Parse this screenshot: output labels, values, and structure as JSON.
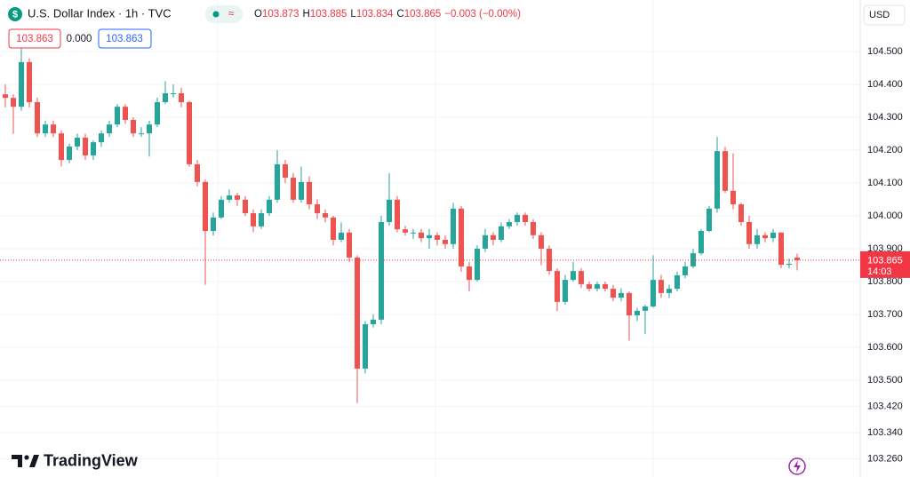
{
  "header": {
    "title": "U.S. Dollar Index · 1h · TVC",
    "status_icon": "≈",
    "ohlc": [
      {
        "label": "O",
        "value": "103.873"
      },
      {
        "label": "H",
        "value": "103.885"
      },
      {
        "label": "L",
        "value": "103.834"
      },
      {
        "label": "C",
        "value": "103.865"
      }
    ],
    "change": "−0.003 (−0.00%)",
    "badges": [
      "103.863",
      "0.000",
      "103.863"
    ]
  },
  "currency": "USD",
  "logo": "TradingView",
  "chart_data": {
    "type": "candlestick",
    "up_color": "#26a69a",
    "down_color": "#ef5350",
    "ylim": [
      103.205,
      104.657
    ],
    "yticks": [
      {
        "value": 104.5,
        "label": "104.500"
      },
      {
        "value": 104.4,
        "label": "104.400"
      },
      {
        "value": 104.3,
        "label": "104.300"
      },
      {
        "value": 104.2,
        "label": "104.200"
      },
      {
        "value": 104.1,
        "label": "104.100"
      },
      {
        "value": 104.0,
        "label": "104.000"
      },
      {
        "value": 103.9,
        "label": "103.900"
      },
      {
        "value": 103.8,
        "label": "103.800"
      },
      {
        "value": 103.7,
        "label": "103.700"
      },
      {
        "value": 103.6,
        "label": "103.600"
      },
      {
        "value": 103.5,
        "label": "103.500"
      },
      {
        "value": 103.42,
        "label": "103.420"
      },
      {
        "value": 103.34,
        "label": "103.340"
      },
      {
        "value": 103.26,
        "label": "103.260"
      }
    ],
    "grid": true,
    "last_price": {
      "value": 103.865,
      "label": "103.865"
    },
    "countdown": "14:03",
    "candles": [
      [
        104.37,
        104.4,
        104.33,
        104.359
      ],
      [
        104.359,
        104.37,
        104.25,
        104.332
      ],
      [
        104.332,
        104.535,
        104.32,
        104.468
      ],
      [
        104.468,
        104.48,
        104.33,
        104.346
      ],
      [
        104.346,
        104.36,
        104.24,
        104.251
      ],
      [
        104.251,
        104.29,
        104.24,
        104.278
      ],
      [
        104.278,
        104.29,
        104.24,
        104.251
      ],
      [
        104.251,
        104.26,
        104.15,
        104.17
      ],
      [
        104.17,
        104.22,
        104.16,
        104.211
      ],
      [
        104.211,
        104.25,
        104.2,
        104.238
      ],
      [
        104.238,
        104.25,
        104.17,
        104.184
      ],
      [
        104.184,
        104.23,
        104.17,
        104.224
      ],
      [
        104.224,
        104.26,
        104.21,
        104.251
      ],
      [
        104.251,
        104.29,
        104.24,
        104.278
      ],
      [
        104.278,
        104.34,
        104.27,
        104.332
      ],
      [
        104.332,
        104.34,
        104.28,
        104.292
      ],
      [
        104.292,
        104.3,
        104.24,
        104.251
      ],
      [
        104.251,
        104.27,
        104.24,
        104.251
      ],
      [
        104.251,
        104.29,
        104.18,
        104.278
      ],
      [
        104.278,
        104.36,
        104.27,
        104.346
      ],
      [
        104.346,
        104.41,
        104.34,
        104.373
      ],
      [
        104.373,
        104.4,
        104.36,
        104.373
      ],
      [
        104.373,
        104.39,
        104.33,
        104.346
      ],
      [
        104.346,
        104.35,
        104.15,
        104.157
      ],
      [
        104.157,
        104.17,
        104.09,
        104.103
      ],
      [
        104.103,
        104.11,
        103.79,
        103.954
      ],
      [
        103.954,
        104.01,
        103.94,
        103.995
      ],
      [
        103.995,
        104.06,
        103.99,
        104.049
      ],
      [
        104.049,
        104.08,
        104.04,
        104.062
      ],
      [
        104.062,
        104.07,
        104.03,
        104.049
      ],
      [
        104.049,
        104.06,
        104.0,
        104.008
      ],
      [
        104.008,
        104.02,
        103.95,
        103.968
      ],
      [
        103.968,
        104.02,
        103.96,
        104.008
      ],
      [
        104.008,
        104.06,
        104.0,
        104.049
      ],
      [
        104.049,
        104.2,
        104.04,
        104.157
      ],
      [
        104.157,
        104.17,
        104.1,
        104.116
      ],
      [
        104.116,
        104.13,
        104.04,
        104.049
      ],
      [
        104.049,
        104.15,
        104.04,
        104.103
      ],
      [
        104.103,
        104.12,
        104.02,
        104.035
      ],
      [
        104.035,
        104.05,
        103.99,
        104.008
      ],
      [
        104.008,
        104.02,
        103.98,
        103.995
      ],
      [
        103.995,
        104.0,
        103.91,
        103.927
      ],
      [
        103.927,
        103.98,
        103.92,
        103.949
      ],
      [
        103.949,
        103.96,
        103.86,
        103.873
      ],
      [
        103.873,
        103.88,
        103.43,
        103.535
      ],
      [
        103.535,
        103.68,
        103.52,
        103.67
      ],
      [
        103.67,
        103.7,
        103.66,
        103.684
      ],
      [
        103.684,
        104.0,
        103.67,
        103.981
      ],
      [
        103.981,
        104.13,
        103.97,
        104.049
      ],
      [
        104.049,
        104.06,
        103.95,
        103.959
      ],
      [
        103.959,
        103.97,
        103.94,
        103.949
      ],
      [
        103.949,
        103.96,
        103.93,
        103.949
      ],
      [
        103.949,
        103.96,
        103.92,
        103.932
      ],
      [
        103.932,
        103.96,
        103.9,
        103.941
      ],
      [
        103.941,
        103.95,
        103.91,
        103.927
      ],
      [
        103.927,
        103.94,
        103.9,
        103.914
      ],
      [
        103.914,
        104.04,
        103.9,
        104.022
      ],
      [
        104.022,
        104.03,
        103.83,
        103.846
      ],
      [
        103.846,
        103.86,
        103.77,
        103.805
      ],
      [
        103.805,
        103.91,
        103.8,
        103.9
      ],
      [
        103.9,
        103.96,
        103.89,
        103.941
      ],
      [
        103.941,
        103.95,
        103.91,
        103.927
      ],
      [
        103.927,
        103.98,
        103.92,
        103.968
      ],
      [
        103.968,
        103.99,
        103.96,
        103.981
      ],
      [
        103.981,
        104.01,
        103.97,
        104.003
      ],
      [
        104.003,
        104.01,
        103.97,
        103.981
      ],
      [
        103.981,
        103.99,
        103.93,
        103.941
      ],
      [
        103.941,
        103.95,
        103.85,
        103.9
      ],
      [
        103.9,
        103.91,
        103.82,
        103.832
      ],
      [
        103.832,
        103.84,
        103.71,
        103.738
      ],
      [
        103.738,
        103.82,
        103.73,
        103.805
      ],
      [
        103.805,
        103.86,
        103.8,
        103.832
      ],
      [
        103.832,
        103.84,
        103.78,
        103.792
      ],
      [
        103.792,
        103.8,
        103.77,
        103.778
      ],
      [
        103.778,
        103.8,
        103.77,
        103.792
      ],
      [
        103.792,
        103.8,
        103.77,
        103.778
      ],
      [
        103.778,
        103.79,
        103.74,
        103.751
      ],
      [
        103.751,
        103.78,
        103.74,
        103.765
      ],
      [
        103.765,
        103.77,
        103.62,
        103.697
      ],
      [
        103.697,
        103.72,
        103.68,
        103.711
      ],
      [
        103.711,
        103.73,
        103.64,
        103.724
      ],
      [
        103.724,
        103.88,
        103.72,
        103.805
      ],
      [
        103.805,
        103.82,
        103.75,
        103.765
      ],
      [
        103.765,
        103.79,
        103.75,
        103.778
      ],
      [
        103.778,
        103.83,
        103.77,
        103.819
      ],
      [
        103.819,
        103.86,
        103.81,
        103.846
      ],
      [
        103.846,
        103.9,
        103.84,
        103.886
      ],
      [
        103.886,
        103.96,
        103.88,
        103.954
      ],
      [
        103.954,
        104.03,
        103.95,
        104.022
      ],
      [
        104.022,
        104.24,
        104.01,
        104.197
      ],
      [
        104.197,
        104.21,
        104.07,
        104.076
      ],
      [
        104.076,
        104.19,
        104.02,
        104.035
      ],
      [
        104.035,
        104.04,
        103.97,
        103.981
      ],
      [
        103.981,
        104.0,
        103.9,
        103.914
      ],
      [
        103.914,
        103.96,
        103.9,
        103.941
      ],
      [
        103.941,
        103.95,
        103.92,
        103.932
      ],
      [
        103.932,
        103.96,
        103.92,
        103.949
      ],
      [
        103.949,
        103.95,
        103.84,
        103.851
      ],
      [
        103.851,
        103.87,
        103.84,
        103.854
      ],
      [
        103.873,
        103.885,
        103.834,
        103.865
      ]
    ]
  }
}
